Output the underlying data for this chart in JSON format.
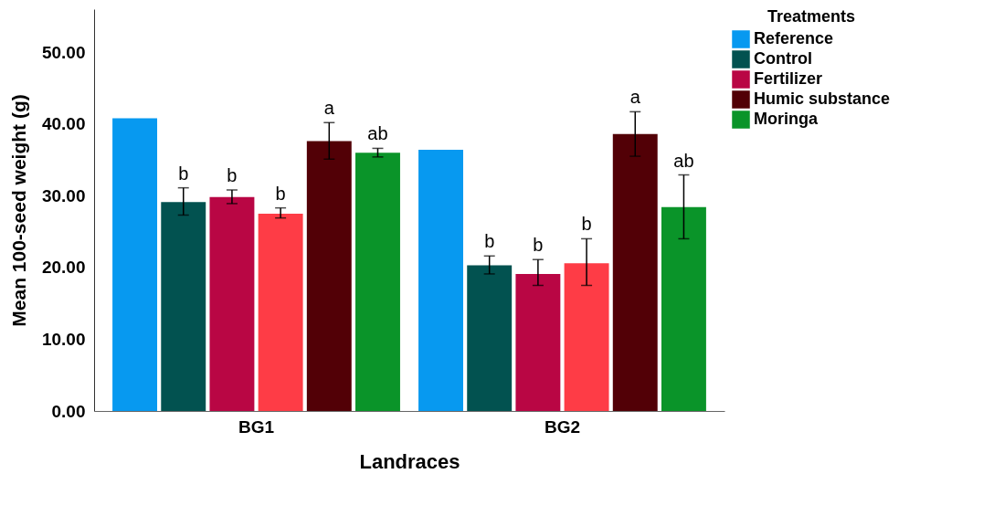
{
  "chart_data": {
    "type": "bar",
    "xlabel": "Landraces",
    "ylabel": "Mean 100-seed weight (g)",
    "legend_title": "Treatments",
    "legend": "top right",
    "grid": false,
    "categories": [
      "BG1",
      "BG2"
    ],
    "ylim": [
      0,
      56
    ],
    "yticks": [
      {
        "value": 0,
        "label": "0.00"
      },
      {
        "value": 10,
        "label": "10.00"
      },
      {
        "value": 20,
        "label": "20.00"
      },
      {
        "value": 30,
        "label": "30.00"
      },
      {
        "value": 40,
        "label": "40.00"
      },
      {
        "value": 50,
        "label": "50.00"
      }
    ],
    "series": [
      {
        "name": "Reference",
        "color": "#0799f0",
        "values": [
          40.8,
          36.4
        ]
      },
      {
        "name": "Control",
        "color": "#025250",
        "values": [
          29.1,
          20.3
        ],
        "errors": [
          [
            27.3,
            31.1
          ],
          [
            19.1,
            21.6
          ]
        ],
        "value_labels": [
          "b",
          "b"
        ]
      },
      {
        "name": "Fertilizer",
        "color": "#b90644",
        "values": [
          29.8,
          19.1
        ],
        "errors": [
          [
            28.9,
            30.8
          ],
          [
            17.5,
            21.1
          ]
        ],
        "value_labels": [
          "b",
          "b"
        ]
      },
      {
        "color": "#fe3c46",
        "values": [
          27.5,
          20.6
        ],
        "errors": [
          [
            26.9,
            28.3
          ],
          [
            17.5,
            24.0
          ]
        ],
        "value_labels": [
          "b",
          "b"
        ]
      },
      {
        "name": "Humic substance",
        "color": "#520006",
        "values": [
          37.6,
          38.6
        ],
        "errors": [
          [
            35.1,
            40.2
          ],
          [
            35.5,
            41.7
          ]
        ],
        "value_labels": [
          "a",
          "a"
        ]
      },
      {
        "name": "Moringa",
        "color": "#0a9429",
        "values": [
          36.0,
          28.4
        ],
        "errors": [
          [
            35.4,
            36.6
          ],
          [
            24.0,
            32.9
          ]
        ],
        "value_labels": [
          "ab",
          "ab"
        ]
      }
    ]
  }
}
